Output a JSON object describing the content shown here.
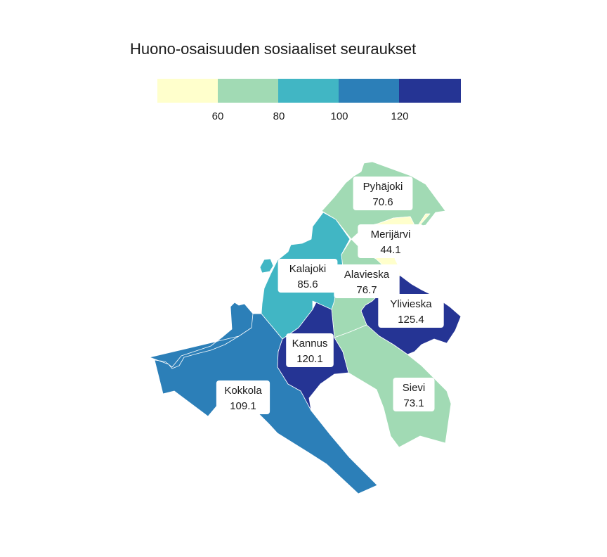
{
  "title": "Huono-osaisuuden sosiaaliset seuraukset",
  "legend": {
    "ticks": [
      "60",
      "80",
      "100",
      "120"
    ],
    "colors": [
      "#ffffcc",
      "#a1dab4",
      "#41b6c4",
      "#2c7fb8",
      "#253494"
    ]
  },
  "chart_data": {
    "type": "choropleth",
    "title": "Huono-osaisuuden sosiaaliset seuraukset",
    "breaks": [
      60,
      80,
      100,
      120
    ],
    "regions": [
      {
        "id": "kokkola",
        "name": "Kokkola",
        "value": "109.1",
        "color": "#2c7fb8"
      },
      {
        "id": "kalajoki",
        "name": "Kalajoki",
        "value": "85.6",
        "color": "#41b6c4"
      },
      {
        "id": "pyhajoki",
        "name": "Pyhäjoki",
        "value": "70.6",
        "color": "#a1dab4"
      },
      {
        "id": "merijarvi",
        "name": "Merijärvi",
        "value": "44.1",
        "color": "#ffffcc"
      },
      {
        "id": "alavieska",
        "name": "Alavieska",
        "value": "76.7",
        "color": "#a1dab4"
      },
      {
        "id": "ylivieska",
        "name": "Ylivieska",
        "value": "125.4",
        "color": "#253494"
      },
      {
        "id": "kannus",
        "name": "Kannus",
        "value": "120.1",
        "color": "#253494"
      },
      {
        "id": "sievi",
        "name": "Sievi",
        "value": "73.1",
        "color": "#a1dab4"
      }
    ]
  }
}
